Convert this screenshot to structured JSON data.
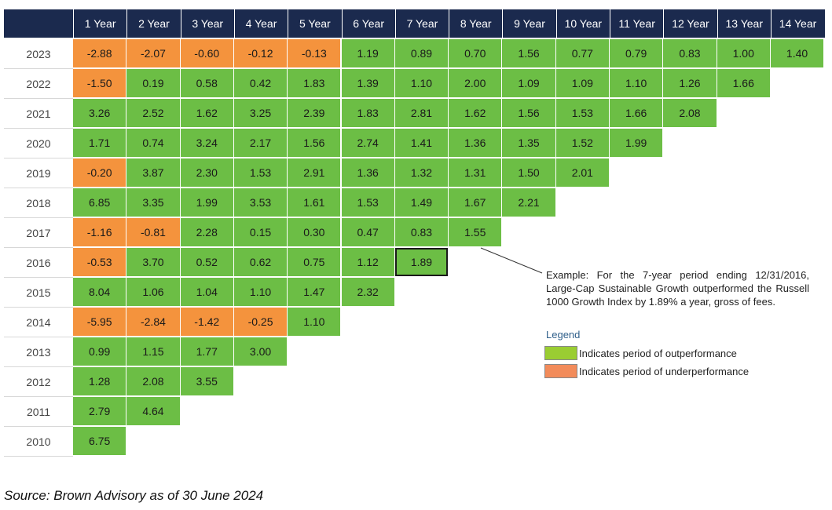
{
  "colors": {
    "outperformance": "#6cbe45",
    "underperformance": "#f4933d",
    "header": "#1b2a4e"
  },
  "chart_data": {
    "type": "table",
    "columns": [
      "1 Year",
      "2 Year",
      "3 Year",
      "4 Year",
      "5 Year",
      "6 Year",
      "7 Year",
      "8 Year",
      "9 Year",
      "10 Year",
      "11 Year",
      "12 Year",
      "13 Year",
      "14 Year"
    ],
    "rows": [
      {
        "year": "2023",
        "values": [
          "-2.88",
          "-2.07",
          "-0.60",
          "-0.12",
          "-0.13",
          "1.19",
          "0.89",
          "0.70",
          "1.56",
          "0.77",
          "0.79",
          "0.83",
          "1.00",
          "1.40"
        ]
      },
      {
        "year": "2022",
        "values": [
          "-1.50",
          "0.19",
          "0.58",
          "0.42",
          "1.83",
          "1.39",
          "1.10",
          "2.00",
          "1.09",
          "1.09",
          "1.10",
          "1.26",
          "1.66"
        ]
      },
      {
        "year": "2021",
        "values": [
          "3.26",
          "2.52",
          "1.62",
          "3.25",
          "2.39",
          "1.83",
          "2.81",
          "1.62",
          "1.56",
          "1.53",
          "1.66",
          "2.08"
        ]
      },
      {
        "year": "2020",
        "values": [
          "1.71",
          "0.74",
          "3.24",
          "2.17",
          "1.56",
          "2.74",
          "1.41",
          "1.36",
          "1.35",
          "1.52",
          "1.99"
        ]
      },
      {
        "year": "2019",
        "values": [
          "-0.20",
          "3.87",
          "2.30",
          "1.53",
          "2.91",
          "1.36",
          "1.32",
          "1.31",
          "1.50",
          "2.01"
        ]
      },
      {
        "year": "2018",
        "values": [
          "6.85",
          "3.35",
          "1.99",
          "3.53",
          "1.61",
          "1.53",
          "1.49",
          "1.67",
          "2.21"
        ]
      },
      {
        "year": "2017",
        "values": [
          "-1.16",
          "-0.81",
          "2.28",
          "0.15",
          "0.30",
          "0.47",
          "0.83",
          "1.55"
        ]
      },
      {
        "year": "2016",
        "values": [
          "-0.53",
          "3.70",
          "0.52",
          "0.62",
          "0.75",
          "1.12",
          "1.89"
        ]
      },
      {
        "year": "2015",
        "values": [
          "8.04",
          "1.06",
          "1.04",
          "1.10",
          "1.47",
          "2.32"
        ]
      },
      {
        "year": "2014",
        "values": [
          "-5.95",
          "-2.84",
          "-1.42",
          "-0.25",
          "1.10"
        ]
      },
      {
        "year": "2013",
        "values": [
          "0.99",
          "1.15",
          "1.77",
          "3.00"
        ]
      },
      {
        "year": "2012",
        "values": [
          "1.28",
          "2.08",
          "3.55"
        ]
      },
      {
        "year": "2011",
        "values": [
          "2.79",
          "4.64"
        ]
      },
      {
        "year": "2010",
        "values": [
          "6.75"
        ]
      }
    ],
    "highlight": {
      "year": "2016",
      "column": "7 Year"
    }
  },
  "annotation": {
    "example": "Example: For the 7-year period ending 12/31/2016, Large-Cap Sustainable Growth outperformed the Russell 1000 Growth Index by 1.89% a year, gross of fees."
  },
  "legend": {
    "title": "Legend",
    "items": [
      {
        "label": "Indicates period of outperformance",
        "color": "#9acd32"
      },
      {
        "label": "Indicates period of underperformance",
        "color": "#f28b5a"
      }
    ]
  },
  "source": "Source: Brown Advisory as of 30 June 2024"
}
